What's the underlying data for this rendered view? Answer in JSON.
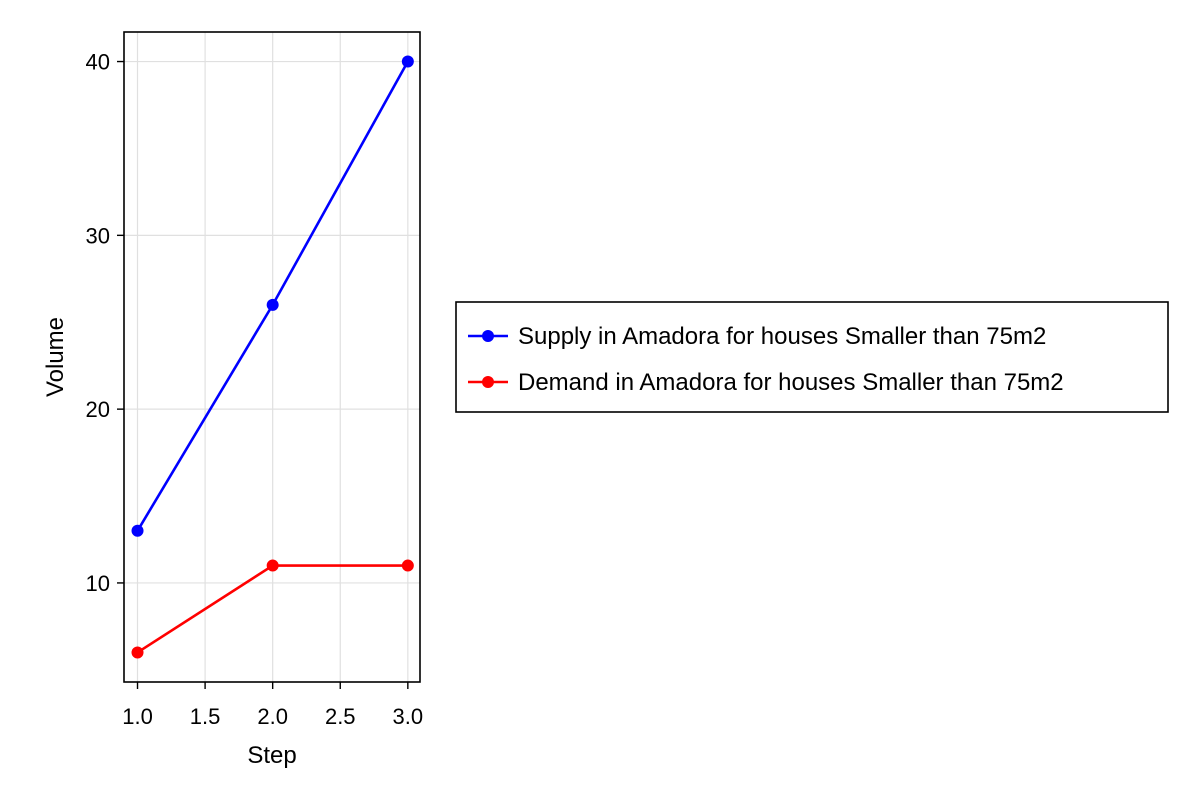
{
  "chart_data": {
    "type": "line",
    "title": "",
    "xlabel": "Step",
    "ylabel": "Volume",
    "xlim": [
      0.9,
      3.09
    ],
    "ylim": [
      4.3,
      41.7
    ],
    "x_ticks": [
      1.0,
      1.5,
      2.0,
      2.5,
      3.0
    ],
    "x_tick_labels": [
      "1.0",
      "1.5",
      "2.0",
      "2.5",
      "3.0"
    ],
    "y_ticks": [
      10,
      20,
      30,
      40
    ],
    "y_tick_labels": [
      "10",
      "20",
      "30",
      "40"
    ],
    "grid": true,
    "legend_placement": "right",
    "series": [
      {
        "name": "Supply in Amadora for houses Smaller than 75m2",
        "color": "#0000ff",
        "x": [
          1,
          2,
          3
        ],
        "y": [
          13,
          26,
          40
        ]
      },
      {
        "name": "Demand in Amadora for houses Smaller than 75m2",
        "color": "#ff0000",
        "x": [
          1,
          2,
          3
        ],
        "y": [
          6,
          11,
          11
        ]
      }
    ]
  }
}
